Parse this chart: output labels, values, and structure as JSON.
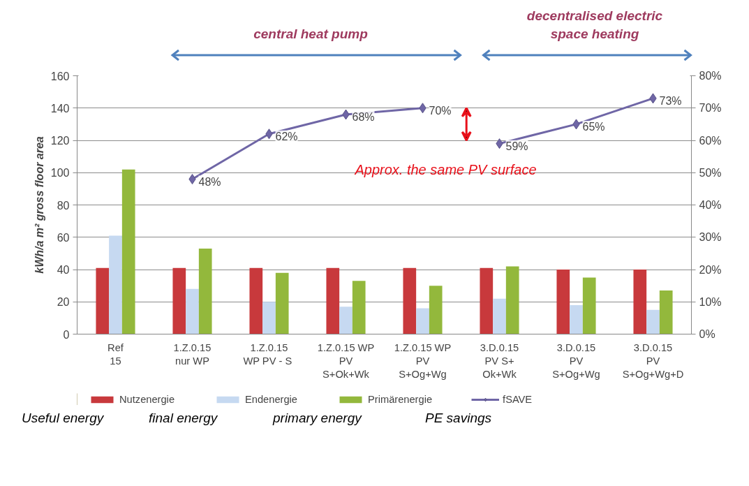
{
  "chart_data": {
    "type": "bar",
    "ylabel": "kWh/a m² gross floor area",
    "categories": [
      "Ref\n15",
      "1.Z.0.15\nnur WP",
      "1.Z.0.15\nWP  PV - S",
      "1.Z.0.15 WP\nPV\nS+Ok+Wk",
      "1.Z.0.15 WP\nPV\nS+Og+Wg",
      "3.D.0.15\nPV S+\nOk+Wk",
      "3.D.0.15\nPV\nS+Og+Wg",
      "3.D.0.15\nPV\nS+Og+Wg+D"
    ],
    "series": [
      {
        "name": "Nutzenergie",
        "color": "#c8393c",
        "values": [
          41,
          41,
          41,
          41,
          41,
          41,
          40,
          40
        ]
      },
      {
        "name": "Endenergie",
        "color": "#c6d9f1",
        "values": [
          61,
          28,
          20,
          17,
          16,
          22,
          18,
          15
        ]
      },
      {
        "name": "Primärenergie",
        "color": "#93b83c",
        "values": [
          102,
          53,
          38,
          33,
          30,
          42,
          35,
          27
        ]
      },
      {
        "name": "fSAVE",
        "type": "line",
        "axis": "y2",
        "color": "#6f66a6",
        "values": [
          null,
          48,
          62,
          68,
          70,
          null,
          null,
          null
        ],
        "value_labels": [
          null,
          "48%",
          "62%",
          "68%",
          "70%",
          null,
          null,
          null
        ]
      },
      {
        "type": "line",
        "axis": "y2",
        "color": "#6f66a6",
        "values": [
          null,
          null,
          null,
          null,
          null,
          59,
          65,
          73
        ],
        "value_labels": [
          null,
          null,
          null,
          null,
          null,
          "59%",
          "65%",
          "73%"
        ]
      }
    ],
    "ylim": [
      0,
      160
    ],
    "yticks": [
      0,
      20,
      40,
      60,
      80,
      100,
      120,
      140,
      160
    ],
    "y2lim": [
      0,
      80
    ],
    "y2ticks": [
      {
        "value": 0,
        "label": "0%"
      },
      {
        "value": 10,
        "label": "10%"
      },
      {
        "value": 20,
        "label": "20%"
      },
      {
        "value": 30,
        "label": "30%"
      },
      {
        "value": 40,
        "label": "40%"
      },
      {
        "value": 50,
        "label": "50%"
      },
      {
        "value": 60,
        "label": "60%"
      },
      {
        "value": 70,
        "label": "70%"
      },
      {
        "value": 80,
        "label": "80%"
      }
    ],
    "grid": "y",
    "legend": "bottom",
    "marker": "diamond",
    "annotations": [
      "central heat pump",
      "decentralised electric\nspace heating",
      "Approx. the same PV surface",
      "Useful energy",
      "final energy",
      "primary energy",
      "PE savings"
    ]
  }
}
